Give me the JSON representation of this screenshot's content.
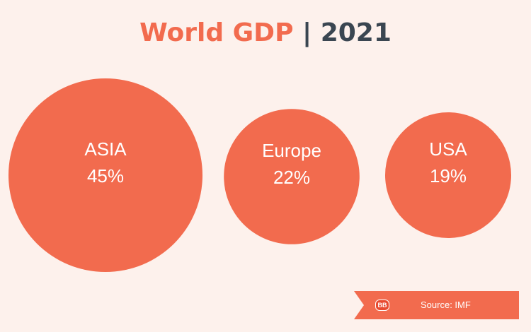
{
  "title": {
    "main": "World GDP",
    "separator": "|",
    "year": "2021"
  },
  "chart_data": {
    "type": "bubble",
    "title": "World GDP | 2021",
    "categories": [
      "ASIA",
      "Europe",
      "USA"
    ],
    "values": [
      45,
      22,
      19
    ],
    "value_labels": [
      "45%",
      "22%",
      "19%"
    ],
    "unit": "%",
    "bubble_color": "#f26b4e"
  },
  "source": {
    "logo_text": "BB",
    "text": "Source: IMF"
  },
  "colors": {
    "accent": "#f26b4e",
    "dark": "#3a4651",
    "background": "#fdf1ec"
  }
}
